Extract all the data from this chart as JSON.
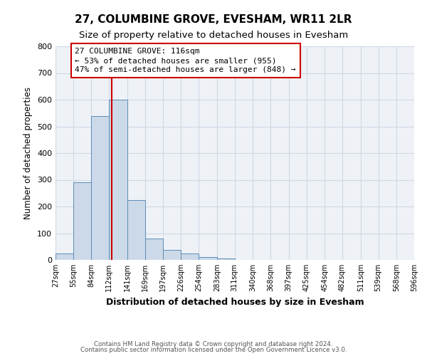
{
  "title": "27, COLUMBINE GROVE, EVESHAM, WR11 2LR",
  "subtitle": "Size of property relative to detached houses in Evesham",
  "xlabel": "Distribution of detached houses by size in Evesham",
  "ylabel": "Number of detached properties",
  "bin_labels": [
    "27sqm",
    "55sqm",
    "84sqm",
    "112sqm",
    "141sqm",
    "169sqm",
    "197sqm",
    "226sqm",
    "254sqm",
    "283sqm",
    "311sqm",
    "340sqm",
    "368sqm",
    "397sqm",
    "425sqm",
    "454sqm",
    "482sqm",
    "511sqm",
    "539sqm",
    "568sqm",
    "596sqm"
  ],
  "bin_edges": [
    27,
    55,
    84,
    112,
    141,
    169,
    197,
    226,
    254,
    283,
    311,
    340,
    368,
    397,
    425,
    454,
    482,
    511,
    539,
    568,
    596
  ],
  "bar_heights": [
    25,
    290,
    540,
    600,
    225,
    80,
    38,
    25,
    10,
    5,
    0,
    0,
    0,
    0,
    0,
    0,
    0,
    0,
    0,
    0
  ],
  "bar_color": "#ccd9e8",
  "bar_edge_color": "#5b8db8",
  "property_size": 116,
  "vline_color": "#cc0000",
  "annotation_line1": "27 COLUMBINE GROVE: 116sqm",
  "annotation_line2": "← 53% of detached houses are smaller (955)",
  "annotation_line3": "47% of semi-detached houses are larger (848) →",
  "annotation_box_color": "#ffffff",
  "annotation_box_edge": "#cc0000",
  "ylim": [
    0,
    800
  ],
  "yticks": [
    0,
    100,
    200,
    300,
    400,
    500,
    600,
    700,
    800
  ],
  "footer1": "Contains HM Land Registry data © Crown copyright and database right 2024.",
  "footer2": "Contains public sector information licensed under the Open Government Licence v3.0.",
  "background_color": "#ffffff",
  "axes_bg_color": "#eef2f7",
  "grid_color": "#d0d8e4",
  "title_fontsize": 11,
  "subtitle_fontsize": 9.5,
  "annotation_fontsize": 8,
  "ylabel_fontsize": 8.5,
  "xlabel_fontsize": 9
}
